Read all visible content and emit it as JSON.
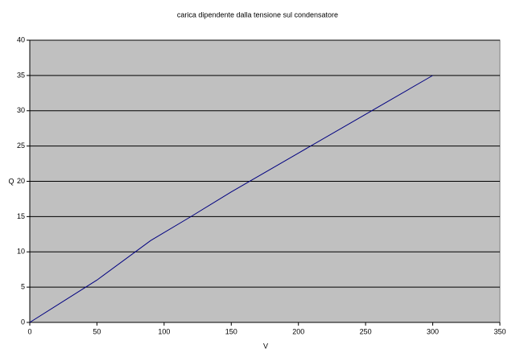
{
  "chart_data": {
    "type": "line",
    "title": "carica dipendente dalla tensione sul condensatore",
    "x_label": "V",
    "y_label": "Q",
    "series": [
      {
        "color": "#000080",
        "x": [
          0,
          50,
          90,
          120,
          150,
          200,
          250,
          300
        ],
        "values": [
          0,
          6,
          11.6,
          15,
          18.5,
          24,
          29.5,
          35
        ]
      }
    ],
    "xlim": [
      0,
      350
    ],
    "xticks": [
      0,
      50,
      100,
      150,
      200,
      250,
      300,
      350
    ],
    "ylim": [
      0,
      40
    ],
    "yticks": [
      0,
      5,
      10,
      15,
      20,
      25,
      30,
      35,
      40
    ],
    "grid": true
  }
}
